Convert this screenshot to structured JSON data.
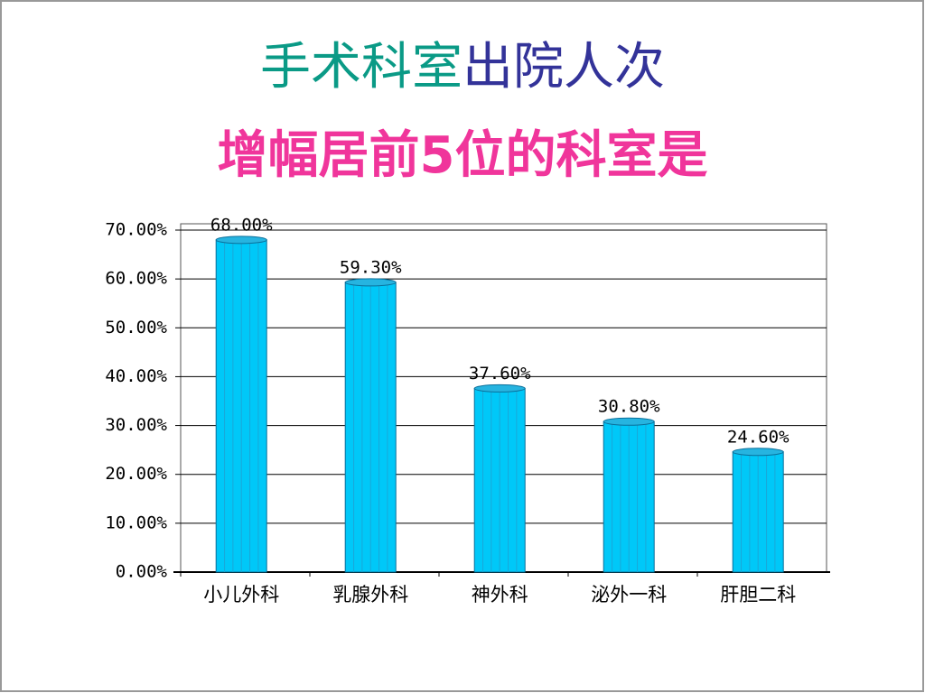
{
  "chart_data": {
    "type": "bar",
    "title_segments": [
      {
        "text": "手术科室",
        "color": "#0a9a86"
      },
      {
        "text": "出院人次",
        "color": "#333399"
      }
    ],
    "subtitle": "增幅居前5位的科室是",
    "subtitle_color": "#f0359b",
    "categories": [
      "小儿外科",
      "乳腺外科",
      "神外科",
      "泌外一科",
      "肝胆二科"
    ],
    "values": [
      68,
      59.3,
      37.6,
      30.8,
      24.6
    ],
    "value_labels": [
      "68.00%",
      "59.30%",
      "37.60%",
      "30.80%",
      "24.60%"
    ],
    "color": "#00c8f8",
    "ylim": [
      0,
      70
    ],
    "yticks": [
      {
        "value": 0,
        "label": "0.00%"
      },
      {
        "value": 10,
        "label": "10.00%"
      },
      {
        "value": 20,
        "label": "20.00%"
      },
      {
        "value": 30,
        "label": "30.00%"
      },
      {
        "value": 40,
        "label": "40.00%"
      },
      {
        "value": 50,
        "label": "50.00%"
      },
      {
        "value": 60,
        "label": "60.00%"
      },
      {
        "value": 70,
        "label": "70.00%"
      }
    ],
    "grid": true
  }
}
